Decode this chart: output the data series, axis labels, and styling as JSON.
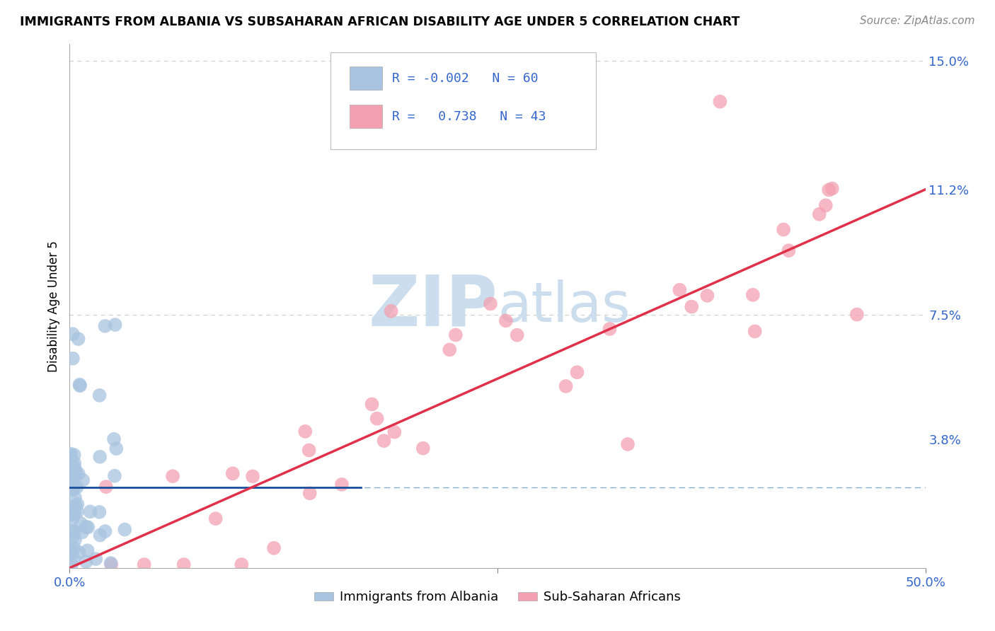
{
  "title": "IMMIGRANTS FROM ALBANIA VS SUBSAHARAN AFRICAN DISABILITY AGE UNDER 5 CORRELATION CHART",
  "source": "Source: ZipAtlas.com",
  "ylabel": "Disability Age Under 5",
  "xlim": [
    0.0,
    0.5
  ],
  "ylim": [
    0.0,
    0.155
  ],
  "ytick_positions": [
    0.0,
    0.038,
    0.075,
    0.112,
    0.15
  ],
  "ytick_labels": [
    "",
    "3.8%",
    "7.5%",
    "11.2%",
    "15.0%"
  ],
  "legend_albania": "Immigrants from Albania",
  "legend_subsaharan": "Sub-Saharan Africans",
  "R_albania": "-0.002",
  "N_albania": "60",
  "R_subsaharan": "0.738",
  "N_subsaharan": "43",
  "albania_color": "#a8c4e0",
  "subsaharan_color": "#f4a0b0",
  "albania_line_color": "#1a4f9c",
  "subsaharan_line_color": "#e0304a",
  "albania_mean_line_color": "#6699cc",
  "grid_color": "#aaaaaa",
  "watermark_color": "#ccdded"
}
